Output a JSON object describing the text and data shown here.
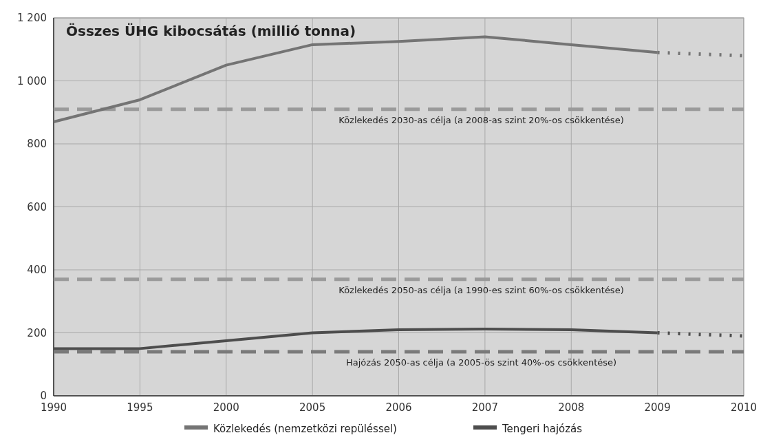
{
  "chart_data": {
    "type": "line",
    "title": "Összes ÜHG kibocsátás (millió tonna)",
    "categories": [
      "1990",
      "1995",
      "2000",
      "2005",
      "2006",
      "2007",
      "2008",
      "2009",
      "2010"
    ],
    "series": [
      {
        "name": "Közlekedés (nemzetközi repüléssel)",
        "color": "#747474",
        "values": [
          870,
          940,
          1050,
          1115,
          1125,
          1140,
          1115,
          1090,
          null
        ]
      },
      {
        "name": "Tengeri hajózás",
        "color": "#4d4d4d",
        "values": [
          150,
          150,
          175,
          200,
          210,
          212,
          210,
          200,
          null
        ]
      },
      {
        "color": "#747474",
        "line_style": "dotted",
        "values": [
          null,
          null,
          null,
          null,
          null,
          null,
          null,
          1090,
          1080
        ]
      },
      {
        "color": "#4d4d4d",
        "line_style": "dotted",
        "values": [
          null,
          null,
          null,
          null,
          null,
          null,
          null,
          200,
          190
        ]
      }
    ],
    "ylim": [
      0,
      1200
    ],
    "yticks": [
      0,
      200,
      400,
      600,
      800,
      {
        "value": 1000,
        "label": "1 000"
      },
      {
        "value": 1200,
        "label": "1 200"
      }
    ],
    "ref_lines": [
      {
        "axis": "y",
        "value": 910,
        "label": "Közlekedés 2030-as célja (a 2008-as szint 20%-os csökkentése)",
        "color": "#9a9a9a",
        "line_style": "dashed"
      },
      {
        "axis": "y",
        "value": 370,
        "label": "Közlekedés 2050-as célja (a 1990-es szint 60%-os csökkentése)",
        "color": "#9a9a9a",
        "line_style": "dashed"
      },
      {
        "axis": "y",
        "value": 140,
        "label": "Hajózás 2050-as célja (a 2005-ös szint 40%-os csökkentése)",
        "color": "#7a7a7a",
        "line_style": "dashed"
      }
    ],
    "grid": true,
    "legend": "bottom",
    "line_style": "solid",
    "marker": "none"
  }
}
